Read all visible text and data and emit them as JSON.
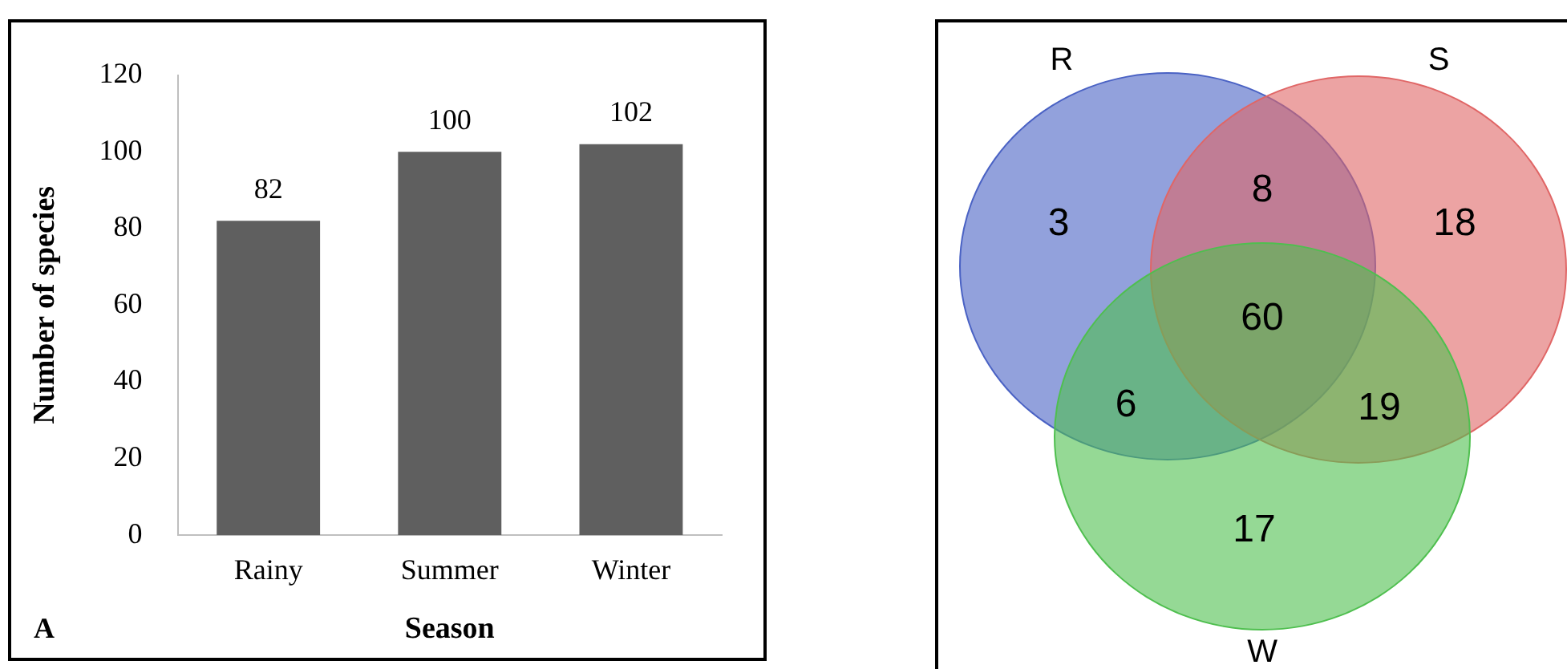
{
  "chart_data": [
    {
      "type": "bar",
      "categories": [
        "Rainy",
        "Summer",
        "Winter"
      ],
      "values": [
        82,
        100,
        102
      ],
      "color": "#5f5f5f",
      "xlabel": "Season",
      "ylabel": "Number of species",
      "ylim": [
        0,
        120
      ],
      "yticks": [
        0,
        20,
        40,
        60,
        80,
        100,
        120
      ],
      "grid": false,
      "legend": false,
      "data_labels": true,
      "annotations": [
        "A"
      ]
    },
    {
      "type": "other",
      "annotations": [
        "R",
        "S",
        "W",
        "3",
        "8",
        "18",
        "6",
        "60",
        "19",
        "17"
      ]
    }
  ]
}
